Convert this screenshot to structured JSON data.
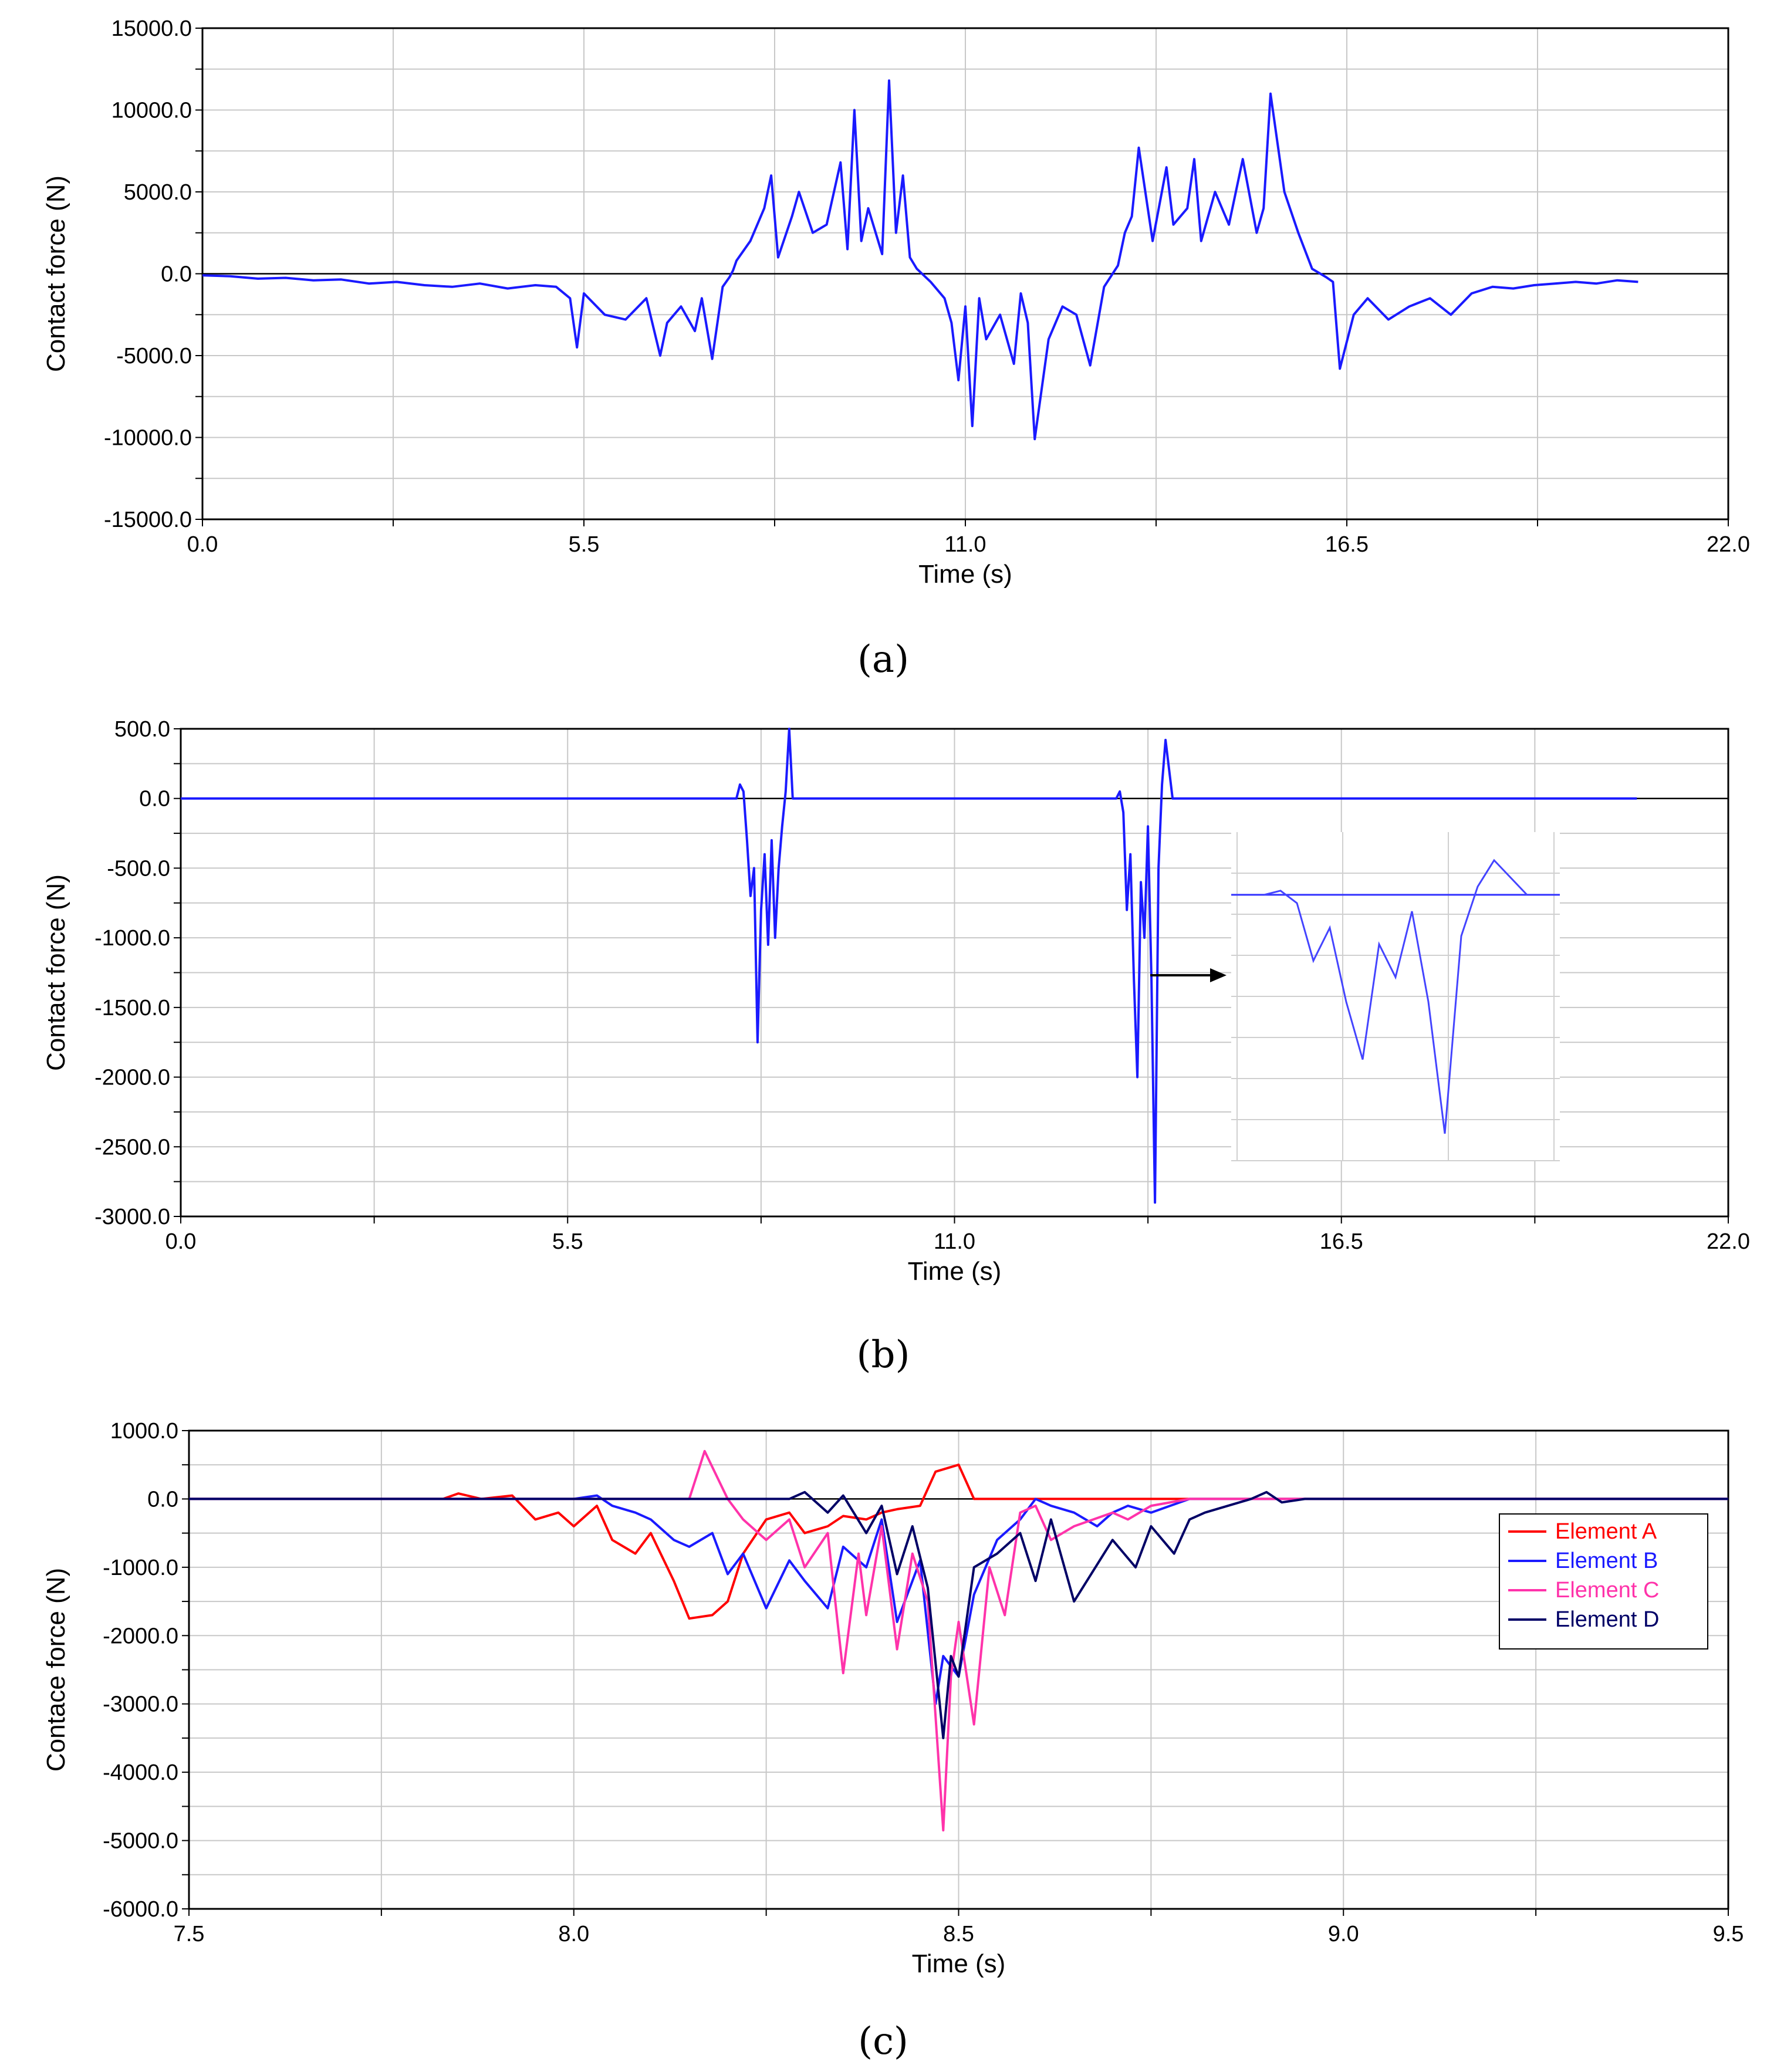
{
  "chart_data": [
    {
      "id": "a",
      "type": "line",
      "caption": "(a)",
      "xlabel": "Time (s)",
      "ylabel": "Contact force (N)",
      "xlim": [
        0.0,
        22.0
      ],
      "ylim": [
        -15000.0,
        15000.0
      ],
      "x_tick_values": [
        0.0,
        5.5,
        11.0,
        16.5,
        22.0
      ],
      "x_tick_labels": [
        "0.0",
        "5.5",
        "11.0",
        "16.5",
        "22.0"
      ],
      "y_tick_values": [
        15000,
        10000,
        5000,
        0,
        -5000,
        -10000,
        -15000
      ],
      "y_tick_labels": [
        "15000.0",
        "10000.0",
        "5000.0",
        "0.0",
        "-5000.0",
        "-10000.0",
        "-15000.0"
      ],
      "grid": true,
      "series": [
        {
          "name": "Contact force",
          "color": "#1a1aff",
          "x": [
            0.0,
            0.4,
            0.8,
            1.2,
            1.6,
            2.0,
            2.4,
            2.8,
            3.2,
            3.6,
            4.0,
            4.4,
            4.8,
            5.1,
            5.3,
            5.4,
            5.5,
            5.8,
            6.1,
            6.4,
            6.6,
            6.7,
            6.9,
            7.1,
            7.2,
            7.35,
            7.5,
            7.6,
            7.65,
            7.7,
            7.9,
            8.1,
            8.2,
            8.3,
            8.5,
            8.6,
            8.8,
            9.0,
            9.2,
            9.3,
            9.4,
            9.5,
            9.6,
            9.8,
            9.9,
            10.0,
            10.1,
            10.2,
            10.3,
            10.5,
            10.7,
            10.8,
            10.9,
            11.0,
            11.1,
            11.2,
            11.3,
            11.5,
            11.7,
            11.8,
            11.9,
            12.0,
            12.2,
            12.4,
            12.6,
            12.8,
            13.0,
            13.2,
            13.3,
            13.4,
            13.5,
            13.7,
            13.9,
            14.0,
            14.2,
            14.3,
            14.4,
            14.6,
            14.8,
            15.0,
            15.2,
            15.3,
            15.4,
            15.6,
            15.8,
            16.0,
            16.2,
            16.3,
            16.4,
            16.6,
            16.8,
            17.1,
            17.4,
            17.7,
            18.0,
            18.3,
            18.6,
            18.9,
            19.2,
            19.5,
            19.8,
            20.1,
            20.4,
            20.7
          ],
          "y": [
            -100,
            -150,
            -300,
            -250,
            -400,
            -350,
            -600,
            -500,
            -700,
            -800,
            -600,
            -900,
            -700,
            -800,
            -1500,
            -4500,
            -1200,
            -2500,
            -2800,
            -1500,
            -5000,
            -3000,
            -2000,
            -3500,
            -1500,
            -5200,
            -800,
            -200,
            200,
            800,
            2000,
            4000,
            6000,
            1000,
            3500,
            5000,
            2500,
            3000,
            6800,
            1500,
            10000,
            2000,
            4000,
            1200,
            11800,
            2500,
            6000,
            1000,
            300,
            -500,
            -1500,
            -3000,
            -6500,
            -2000,
            -9300,
            -1500,
            -4000,
            -2500,
            -5500,
            -1200,
            -3000,
            -10100,
            -4000,
            -2000,
            -2500,
            -5600,
            -800,
            500,
            2500,
            3500,
            7700,
            2000,
            6500,
            3000,
            4000,
            7000,
            2000,
            5000,
            3000,
            7000,
            2500,
            4000,
            11000,
            5000,
            2500,
            300,
            -200,
            -500,
            -5800,
            -2500,
            -1500,
            -2800,
            -2000,
            -1500,
            -2500,
            -1200,
            -800,
            -900,
            -700,
            -600,
            -500,
            -600,
            -400,
            -500
          ]
        }
      ]
    },
    {
      "id": "b",
      "type": "line",
      "caption": "(b)",
      "xlabel": "Time (s)",
      "ylabel": "Contact force (N)",
      "xlim": [
        0.0,
        22.0
      ],
      "ylim": [
        -3000.0,
        500.0
      ],
      "x_tick_values": [
        0.0,
        5.5,
        11.0,
        16.5,
        22.0
      ],
      "x_tick_labels": [
        "0.0",
        "5.5",
        "11.0",
        "16.5",
        "22.0"
      ],
      "y_tick_values": [
        500,
        0,
        -500,
        -1000,
        -1500,
        -2000,
        -2500,
        -3000
      ],
      "y_tick_labels": [
        "500.0",
        "0.0",
        "-500.0",
        "-1000.0",
        "-1500.0",
        "-2000.0",
        "-2500.0",
        "-3000.0"
      ],
      "grid": true,
      "inset": "magnified view of the event near 13.5 s",
      "series": [
        {
          "name": "Contact force",
          "color": "#1a1aff",
          "x": [
            0.0,
            7.9,
            7.95,
            8.0,
            8.05,
            8.1,
            8.15,
            8.2,
            8.25,
            8.3,
            8.35,
            8.4,
            8.45,
            8.5,
            8.55,
            8.6,
            8.65,
            8.7,
            8.75,
            8.8,
            8.9,
            13.3,
            13.35,
            13.4,
            13.45,
            13.5,
            13.55,
            13.6,
            13.65,
            13.7,
            13.75,
            13.8,
            13.85,
            13.9,
            13.95,
            14.0,
            14.1,
            20.7
          ],
          "y": [
            0,
            0,
            100,
            50,
            -300,
            -700,
            -500,
            -1750,
            -800,
            -400,
            -1050,
            -300,
            -1000,
            -500,
            -200,
            50,
            500,
            0,
            0,
            0,
            0,
            0,
            50,
            -100,
            -800,
            -400,
            -1300,
            -2000,
            -600,
            -1000,
            -200,
            -1300,
            -2900,
            -500,
            100,
            420,
            0,
            0
          ]
        }
      ]
    },
    {
      "id": "c",
      "type": "line",
      "caption": "(c)",
      "xlabel": "Time (s)",
      "ylabel": "Contace force (N)",
      "xlim": [
        7.5,
        9.5
      ],
      "ylim": [
        -6000.0,
        1000.0
      ],
      "x_tick_values": [
        7.5,
        8.0,
        8.5,
        9.0,
        9.5
      ],
      "x_tick_labels": [
        "7.5",
        "8.0",
        "8.5",
        "9.0",
        "9.5"
      ],
      "y_tick_values": [
        1000,
        0,
        -1000,
        -2000,
        -3000,
        -4000,
        -5000,
        -6000
      ],
      "y_tick_labels": [
        "1000.0",
        "0.0",
        "-1000.0",
        "-2000.0",
        "-3000.0",
        "-4000.0",
        "-5000.0",
        "-6000.0"
      ],
      "grid": true,
      "legend_position": "right",
      "series": [
        {
          "name": "Element A",
          "color": "#ff0000",
          "x": [
            7.5,
            7.83,
            7.85,
            7.88,
            7.92,
            7.95,
            7.98,
            8.0,
            8.03,
            8.05,
            8.08,
            8.1,
            8.13,
            8.15,
            8.18,
            8.2,
            8.22,
            8.25,
            8.28,
            8.3,
            8.33,
            8.35,
            8.38,
            8.4,
            8.42,
            8.45,
            8.47,
            8.5,
            8.52,
            8.55,
            8.6,
            9.5
          ],
          "y": [
            0,
            0,
            80,
            0,
            50,
            -300,
            -200,
            -400,
            -100,
            -600,
            -800,
            -500,
            -1200,
            -1750,
            -1700,
            -1500,
            -800,
            -300,
            -200,
            -500,
            -400,
            -250,
            -300,
            -200,
            -150,
            -100,
            400,
            500,
            0,
            0,
            0,
            0
          ]
        },
        {
          "name": "Element B",
          "color": "#1a1aff",
          "x": [
            7.5,
            8.0,
            8.03,
            8.05,
            8.08,
            8.1,
            8.13,
            8.15,
            8.18,
            8.2,
            8.22,
            8.25,
            8.28,
            8.3,
            8.33,
            8.35,
            8.38,
            8.4,
            8.42,
            8.45,
            8.47,
            8.48,
            8.5,
            8.52,
            8.55,
            8.58,
            8.6,
            8.62,
            8.65,
            8.68,
            8.7,
            8.72,
            8.75,
            8.8,
            9.5
          ],
          "y": [
            0,
            0,
            50,
            -100,
            -200,
            -300,
            -600,
            -700,
            -500,
            -1100,
            -800,
            -1600,
            -900,
            -1200,
            -1600,
            -700,
            -1000,
            -300,
            -1800,
            -900,
            -3000,
            -2300,
            -2600,
            -1400,
            -600,
            -300,
            0,
            -100,
            -200,
            -400,
            -200,
            -100,
            -200,
            0,
            0
          ]
        },
        {
          "name": "Element C",
          "color": "#ff33aa",
          "x": [
            7.5,
            8.15,
            8.17,
            8.2,
            8.22,
            8.25,
            8.28,
            8.3,
            8.33,
            8.35,
            8.37,
            8.38,
            8.4,
            8.42,
            8.44,
            8.46,
            8.48,
            8.49,
            8.5,
            8.52,
            8.54,
            8.56,
            8.58,
            8.6,
            8.62,
            8.65,
            8.7,
            8.72,
            8.75,
            8.8,
            9.5
          ],
          "y": [
            0,
            0,
            700,
            0,
            -300,
            -600,
            -300,
            -1000,
            -500,
            -2550,
            -800,
            -1700,
            -400,
            -2200,
            -800,
            -1500,
            -4850,
            -2600,
            -1800,
            -3300,
            -1000,
            -1700,
            -200,
            -100,
            -600,
            -400,
            -200,
            -300,
            -100,
            0,
            0
          ]
        },
        {
          "name": "Element D",
          "color": "#000066",
          "x": [
            7.5,
            8.28,
            8.3,
            8.33,
            8.35,
            8.38,
            8.4,
            8.42,
            8.44,
            8.46,
            8.48,
            8.49,
            8.5,
            8.52,
            8.55,
            8.58,
            8.6,
            8.62,
            8.65,
            8.7,
            8.73,
            8.75,
            8.78,
            8.8,
            8.82,
            8.85,
            8.88,
            8.9,
            8.92,
            8.95,
            9.5
          ],
          "y": [
            0,
            0,
            100,
            -200,
            50,
            -500,
            -100,
            -1100,
            -400,
            -1300,
            -3500,
            -2300,
            -2600,
            -1000,
            -800,
            -500,
            -1200,
            -300,
            -1500,
            -600,
            -1000,
            -400,
            -800,
            -300,
            -200,
            -100,
            0,
            100,
            -50,
            0,
            0
          ]
        }
      ]
    }
  ]
}
